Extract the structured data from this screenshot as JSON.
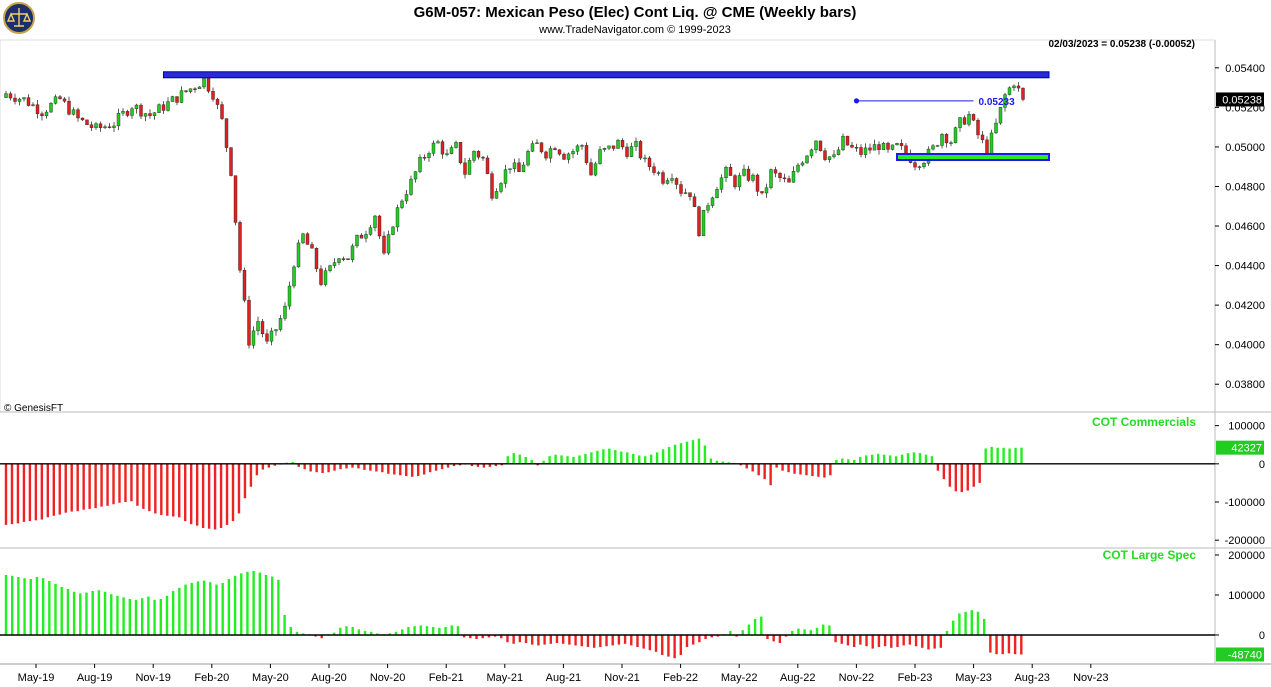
{
  "header": {
    "title": "G6M-057:  Mexican Peso (Elec) Cont Liq. @ CME  (Weekly bars)",
    "subtitle": "www.TradeNavigator.com © 1999-2023",
    "last_readout": "02/03/2023 = 0.05238 (-0.00052)",
    "copyright": "© GenesisFT",
    "logo_icon": "trade-navigator-scale-logo-icon"
  },
  "colors": {
    "up": "#22cc22",
    "down": "#e02020",
    "rect_blue": "#1a1aee",
    "rect_green": "#22ee22",
    "annot_blue": "#1a1aee",
    "cot_green": "#22ee22",
    "cot_red": "#ee2222"
  },
  "chart_data": [
    {
      "type": "candlestick",
      "name": "price",
      "ylim": [
        0.037,
        0.0548
      ],
      "y_ticks": [
        "0.05400",
        "0.05200",
        "0.05000",
        "0.04800",
        "0.04600",
        "0.04400",
        "0.04200",
        "0.04000",
        "0.03800"
      ],
      "last_value_label": "0.05238",
      "annotations": {
        "level_label": "0.05233",
        "level_value": 0.05233,
        "level_from_week": 189,
        "level_to_week": 215,
        "resistance_zone": {
          "from_week": 35,
          "to_week": 250,
          "y_low": 0.0536,
          "y_high": 0.0538
        },
        "support_zone": {
          "from_week": 198,
          "to_week": 250,
          "y_low": 0.04935,
          "y_high": 0.04955
        }
      },
      "x_tick_labels": [
        "May-19",
        "Aug-19",
        "Nov-19",
        "Feb-20",
        "May-20",
        "Aug-20",
        "Nov-20",
        "Feb-21",
        "May-21",
        "Aug-21",
        "Nov-21",
        "Feb-22",
        "May-22",
        "Aug-22",
        "Nov-22",
        "Feb-23",
        "May-23",
        "Aug-23",
        "Nov-23"
      ],
      "x_tick_weeks": [
        0,
        13,
        26,
        39,
        52,
        65,
        78,
        91,
        104,
        117,
        130,
        143,
        156,
        169,
        182,
        195,
        208,
        221,
        234
      ],
      "closes": [
        {
          "week": 0,
          "close": 0.0527
        },
        {
          "week": 4,
          "close": 0.0524
        },
        {
          "week": 8,
          "close": 0.0518
        },
        {
          "week": 12,
          "close": 0.0524
        },
        {
          "week": 16,
          "close": 0.0514
        },
        {
          "week": 20,
          "close": 0.0509
        },
        {
          "week": 24,
          "close": 0.0512
        },
        {
          "week": 28,
          "close": 0.0521
        },
        {
          "week": 32,
          "close": 0.0516
        },
        {
          "week": 36,
          "close": 0.0522
        },
        {
          "week": 40,
          "close": 0.0528
        },
        {
          "week": 44,
          "close": 0.0534
        },
        {
          "week": 46,
          "close": 0.0527
        },
        {
          "week": 48,
          "close": 0.0513
        },
        {
          "week": 50,
          "close": 0.0488
        },
        {
          "week": 52,
          "close": 0.0438
        },
        {
          "week": 54,
          "close": 0.0402
        },
        {
          "week": 56,
          "close": 0.0412
        },
        {
          "week": 58,
          "close": 0.04
        },
        {
          "week": 60,
          "close": 0.0408
        },
        {
          "week": 62,
          "close": 0.0418
        },
        {
          "week": 64,
          "close": 0.0442
        },
        {
          "week": 66,
          "close": 0.0455
        },
        {
          "week": 68,
          "close": 0.0446
        },
        {
          "week": 70,
          "close": 0.0432
        },
        {
          "week": 72,
          "close": 0.0438
        },
        {
          "week": 74,
          "close": 0.0446
        },
        {
          "week": 76,
          "close": 0.0444
        },
        {
          "week": 78,
          "close": 0.0453
        },
        {
          "week": 80,
          "close": 0.0458
        },
        {
          "week": 82,
          "close": 0.0466
        },
        {
          "week": 84,
          "close": 0.0444
        },
        {
          "week": 86,
          "close": 0.0462
        },
        {
          "week": 88,
          "close": 0.0474
        },
        {
          "week": 90,
          "close": 0.0482
        },
        {
          "week": 92,
          "close": 0.0492
        },
        {
          "week": 94,
          "close": 0.0499
        },
        {
          "week": 96,
          "close": 0.0502
        },
        {
          "week": 98,
          "close": 0.0495
        },
        {
          "week": 100,
          "close": 0.05
        },
        {
          "week": 102,
          "close": 0.0487
        },
        {
          "week": 104,
          "close": 0.0498
        },
        {
          "week": 106,
          "close": 0.0494
        },
        {
          "week": 108,
          "close": 0.0477
        },
        {
          "week": 110,
          "close": 0.0484
        },
        {
          "week": 112,
          "close": 0.0491
        },
        {
          "week": 114,
          "close": 0.0487
        },
        {
          "week": 116,
          "close": 0.0497
        },
        {
          "week": 118,
          "close": 0.0501
        },
        {
          "week": 120,
          "close": 0.0497
        },
        {
          "week": 122,
          "close": 0.0501
        },
        {
          "week": 124,
          "close": 0.0496
        },
        {
          "week": 126,
          "close": 0.0498
        },
        {
          "week": 128,
          "close": 0.0501
        },
        {
          "week": 130,
          "close": 0.0486
        },
        {
          "week": 132,
          "close": 0.0497
        },
        {
          "week": 134,
          "close": 0.0499
        },
        {
          "week": 136,
          "close": 0.0502
        },
        {
          "week": 138,
          "close": 0.0498
        },
        {
          "week": 140,
          "close": 0.05
        },
        {
          "week": 142,
          "close": 0.0492
        },
        {
          "week": 144,
          "close": 0.0489
        },
        {
          "week": 146,
          "close": 0.0484
        },
        {
          "week": 148,
          "close": 0.0487
        },
        {
          "week": 150,
          "close": 0.0478
        },
        {
          "week": 152,
          "close": 0.0477
        },
        {
          "week": 154,
          "close": 0.0458
        },
        {
          "week": 156,
          "close": 0.0472
        },
        {
          "week": 158,
          "close": 0.0481
        },
        {
          "week": 160,
          "close": 0.0487
        },
        {
          "week": 162,
          "close": 0.0482
        },
        {
          "week": 164,
          "close": 0.0486
        },
        {
          "week": 166,
          "close": 0.0484
        },
        {
          "week": 168,
          "close": 0.0474
        },
        {
          "week": 170,
          "close": 0.0487
        },
        {
          "week": 172,
          "close": 0.0484
        },
        {
          "week": 174,
          "close": 0.0481
        },
        {
          "week": 176,
          "close": 0.0491
        },
        {
          "week": 178,
          "close": 0.0497
        },
        {
          "week": 180,
          "close": 0.0504
        },
        {
          "week": 182,
          "close": 0.0496
        },
        {
          "week": 184,
          "close": 0.0494
        },
        {
          "week": 186,
          "close": 0.0503
        },
        {
          "week": 188,
          "close": 0.0499
        },
        {
          "week": 190,
          "close": 0.0497
        },
        {
          "week": 192,
          "close": 0.0499
        },
        {
          "week": 194,
          "close": 0.0501
        },
        {
          "week": 196,
          "close": 0.0497
        },
        {
          "week": 198,
          "close": 0.05
        },
        {
          "week": 200,
          "close": 0.0497
        },
        {
          "week": 202,
          "close": 0.0492
        },
        {
          "week": 204,
          "close": 0.0494
        },
        {
          "week": 206,
          "close": 0.0499
        },
        {
          "week": 208,
          "close": 0.0507
        },
        {
          "week": 210,
          "close": 0.0503
        },
        {
          "week": 212,
          "close": 0.0512
        },
        {
          "week": 214,
          "close": 0.0516
        },
        {
          "week": 216,
          "close": 0.0506
        },
        {
          "week": 218,
          "close": 0.0498
        },
        {
          "week": 220,
          "close": 0.0511
        },
        {
          "week": 222,
          "close": 0.0526
        },
        {
          "week": 224,
          "close": 0.0533
        },
        {
          "week": 226,
          "close": 0.0524
        }
      ]
    },
    {
      "type": "bar",
      "name": "cot_commercials",
      "label": "COT Commercials",
      "last_value_label": "42327",
      "ylim": [
        -210000,
        120000
      ],
      "y_ticks": [
        "100000",
        "0",
        "-100000",
        "-200000"
      ],
      "y_tick_values": [
        100000,
        0,
        -100000,
        -200000
      ],
      "values": [
        -160000,
        -158000,
        -156000,
        -152000,
        -150000,
        -148000,
        -146000,
        -140000,
        -136000,
        -133000,
        -128000,
        -125000,
        -124000,
        -120000,
        -118000,
        -116000,
        -112000,
        -110000,
        -106000,
        -102000,
        -100000,
        -98000,
        -110000,
        -118000,
        -124000,
        -130000,
        -134000,
        -136000,
        -138000,
        -140000,
        -150000,
        -158000,
        -162000,
        -168000,
        -170000,
        -172000,
        -168000,
        -160000,
        -150000,
        -130000,
        -90000,
        -60000,
        -30000,
        -15000,
        -10000,
        -5000,
        -2000,
        3000,
        5000,
        -8000,
        -14000,
        -20000,
        -22000,
        -24000,
        -22000,
        -18000,
        -14000,
        -12000,
        -10000,
        -12000,
        -16000,
        -18000,
        -20000,
        -22000,
        -26000,
        -28000,
        -30000,
        -32000,
        -34000,
        -32000,
        -28000,
        -22000,
        -18000,
        -14000,
        -10000,
        -6000,
        -4000,
        -2000,
        -6000,
        -8000,
        -10000,
        -8000,
        -6000,
        -4000,
        20000,
        28000,
        24000,
        18000,
        10000,
        -4000,
        8000,
        20000,
        24000,
        22000,
        20000,
        18000,
        22000,
        26000,
        30000,
        34000,
        38000,
        40000,
        36000,
        32000,
        30000,
        26000,
        22000,
        20000,
        24000,
        30000,
        38000,
        44000,
        50000,
        54000,
        58000,
        62000,
        66000,
        48000,
        14000,
        8000,
        6000,
        4000,
        2000,
        -4000,
        -12000,
        -20000,
        -30000,
        -40000,
        -56000,
        -10000,
        -18000,
        -22000,
        -26000,
        -28000,
        -30000,
        -32000,
        -34000,
        -36000,
        -30000,
        10000,
        14000,
        12000,
        10000,
        18000,
        22000,
        24000,
        26000,
        24000,
        22000,
        20000,
        24000,
        28000,
        30000,
        28000,
        24000,
        20000,
        -18000,
        -40000,
        -60000,
        -72000,
        -74000,
        -70000,
        -60000,
        -50000,
        40000,
        44000,
        42000,
        42000,
        40000,
        42000,
        42327
      ]
    },
    {
      "type": "bar",
      "name": "cot_large_spec",
      "label": "COT Large Spec",
      "last_value_label": "-48740",
      "ylim": [
        -65000,
        210000
      ],
      "y_ticks": [
        "200000",
        "100000",
        "0"
      ],
      "y_tick_values": [
        200000,
        100000,
        0
      ],
      "values": [
        150000,
        148000,
        145000,
        142000,
        140000,
        145000,
        142000,
        135000,
        128000,
        120000,
        115000,
        108000,
        104000,
        106000,
        110000,
        112000,
        108000,
        102000,
        98000,
        94000,
        90000,
        88000,
        92000,
        96000,
        88000,
        90000,
        98000,
        110000,
        118000,
        126000,
        130000,
        134000,
        136000,
        132000,
        126000,
        130000,
        140000,
        148000,
        154000,
        158000,
        160000,
        156000,
        150000,
        146000,
        138000,
        50000,
        20000,
        8000,
        4000,
        2000,
        -4000,
        -8000,
        2000,
        6000,
        18000,
        22000,
        20000,
        14000,
        10000,
        8000,
        4000,
        2000,
        4000,
        8000,
        14000,
        20000,
        22000,
        24000,
        22000,
        20000,
        18000,
        20000,
        24000,
        22000,
        -6000,
        -8000,
        -10000,
        -8000,
        -6000,
        -4000,
        -8000,
        -18000,
        -22000,
        -18000,
        -20000,
        -24000,
        -26000,
        -24000,
        -22000,
        -20000,
        -22000,
        -24000,
        -26000,
        -28000,
        -30000,
        -32000,
        -30000,
        -28000,
        -26000,
        -24000,
        -22000,
        -26000,
        -30000,
        -34000,
        -38000,
        -42000,
        -50000,
        -54000,
        -58000,
        -50000,
        -30000,
        -24000,
        -18000,
        -10000,
        -6000,
        -4000,
        2000,
        10000,
        -4000,
        12000,
        26000,
        40000,
        46000,
        -10000,
        -16000,
        -20000,
        -4000,
        10000,
        16000,
        14000,
        12000,
        18000,
        26000,
        24000,
        -18000,
        -22000,
        -26000,
        -30000,
        -24000,
        -28000,
        -34000,
        -30000,
        -28000,
        -32000,
        -30000,
        -26000,
        -24000,
        -28000,
        -32000,
        -36000,
        -34000,
        -32000,
        10000,
        36000,
        54000,
        58000,
        62000,
        58000,
        40000,
        -44000,
        -48000,
        -48000,
        -46000,
        -48000,
        -48740
      ]
    }
  ]
}
